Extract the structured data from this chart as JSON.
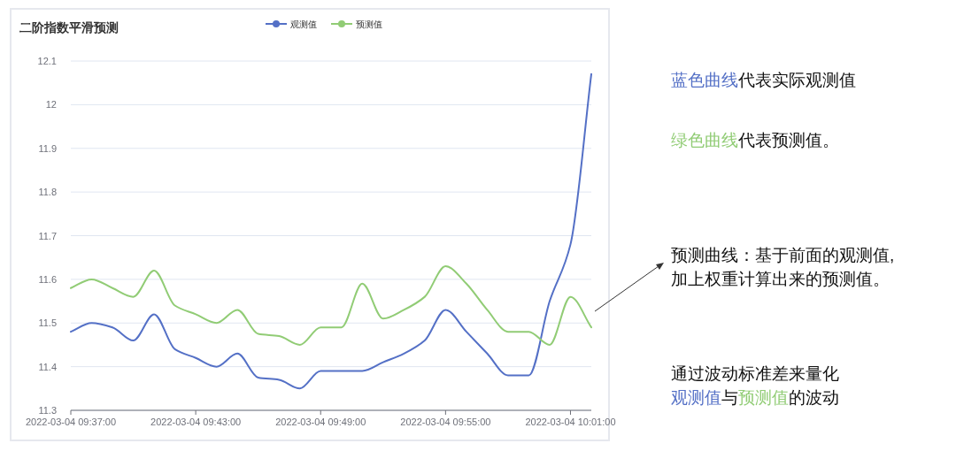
{
  "chart_data": {
    "type": "line",
    "title": "二阶指数平滑预测",
    "x": [
      "2022-03-04T09:37",
      "2022-03-04T09:38",
      "2022-03-04T09:39",
      "2022-03-04T09:40",
      "2022-03-04T09:41",
      "2022-03-04T09:42",
      "2022-03-04T09:43",
      "2022-03-04T09:44",
      "2022-03-04T09:45",
      "2022-03-04T09:46",
      "2022-03-04T09:47",
      "2022-03-04T09:48",
      "2022-03-04T09:49",
      "2022-03-04T09:50",
      "2022-03-04T09:51",
      "2022-03-04T09:52",
      "2022-03-04T09:53",
      "2022-03-04T09:54",
      "2022-03-04T09:55",
      "2022-03-04T09:56",
      "2022-03-04T09:57",
      "2022-03-04T09:58",
      "2022-03-04T09:59",
      "2022-03-04T10:00",
      "2022-03-04T10:01",
      "2022-03-04T10:02"
    ],
    "series": [
      {
        "name": "观测值",
        "color": "#5470c6",
        "values": [
          11.48,
          11.5,
          11.49,
          11.46,
          11.52,
          11.44,
          11.42,
          11.4,
          11.43,
          11.375,
          11.37,
          11.35,
          11.39,
          11.39,
          11.39,
          11.41,
          11.43,
          11.46,
          11.53,
          11.48,
          11.43,
          11.38,
          11.38,
          11.55,
          11.68,
          12.07
        ]
      },
      {
        "name": "预测值",
        "color": "#91cc75",
        "values": [
          11.58,
          11.6,
          11.58,
          11.56,
          11.62,
          11.54,
          11.52,
          11.5,
          11.53,
          11.475,
          11.47,
          11.45,
          11.49,
          11.49,
          11.59,
          11.51,
          11.53,
          11.56,
          11.63,
          11.59,
          11.53,
          11.48,
          11.48,
          11.45,
          11.56,
          11.49
        ]
      }
    ],
    "xlim": [
      "2022-03-04T09:37",
      "2022-03-04T10:02"
    ],
    "xticks": [
      {
        "value": "2022-03-04T09:37",
        "label": "2022-03-04 09:37:00"
      },
      {
        "value": "2022-03-04T09:43",
        "label": "2022-03-04 09:43:00"
      },
      {
        "value": "2022-03-04T09:49",
        "label": "2022-03-04 09:49:00"
      },
      {
        "value": "2022-03-04T09:55",
        "label": "2022-03-04 09:55:00"
      },
      {
        "value": "2022-03-04T10:01",
        "label": "2022-03-04 10:01:00"
      }
    ],
    "ylim": [
      11.3,
      12.1
    ],
    "yticks": [
      11.3,
      11.4,
      11.5,
      11.6,
      11.7,
      11.8,
      11.9,
      12,
      12.1
    ],
    "grid": "y",
    "legend": "top",
    "annotations": [
      "蓝色曲线",
      "代表实际观测值",
      "绿色曲线",
      "代表预测值。",
      "预测曲线：基于前面的观测值,",
      "加上权重计算出来的预测值。",
      "通过波动标准差来量化",
      "观测值",
      "与",
      "预测值",
      "的波动"
    ]
  }
}
